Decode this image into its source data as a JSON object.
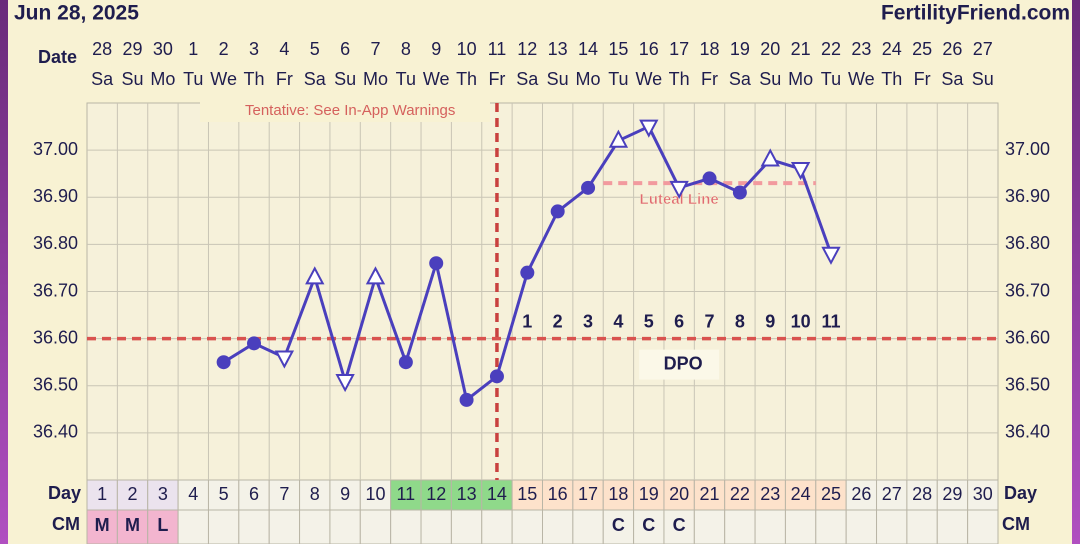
{
  "header": {
    "date": "Jun 28, 2025",
    "site": "FertilityFriend.com"
  },
  "chart_data": {
    "type": "line",
    "date_label": "Date",
    "date_numbers": [
      28,
      29,
      30,
      1,
      2,
      3,
      4,
      5,
      6,
      7,
      8,
      9,
      10,
      11,
      12,
      13,
      14,
      15,
      16,
      17,
      18,
      19,
      20,
      21,
      22,
      23,
      24,
      25,
      26,
      27
    ],
    "weekdays": [
      "Sa",
      "Su",
      "Mo",
      "Tu",
      "We",
      "Th",
      "Fr",
      "Sa",
      "Su",
      "Mo",
      "Tu",
      "We",
      "Th",
      "Fr",
      "Sa",
      "Su",
      "Mo",
      "Tu",
      "We",
      "Th",
      "Fr",
      "Sa",
      "Su",
      "Mo",
      "Tu",
      "We",
      "Th",
      "Fr",
      "Sa",
      "Su"
    ],
    "day_label": "Day",
    "categories": [
      1,
      2,
      3,
      4,
      5,
      6,
      7,
      8,
      9,
      10,
      11,
      12,
      13,
      14,
      15,
      16,
      17,
      18,
      19,
      20,
      21,
      22,
      23,
      24,
      25,
      26,
      27,
      28,
      29,
      30
    ],
    "day_colors": [
      "#ebe3ee",
      "#ebe3ee",
      "#ebe3ee",
      "#f4f2e8",
      "#f4f2e8",
      "#f4f2e8",
      "#f4f2e8",
      "#f4f2e8",
      "#f4f2e8",
      "#f4f2e8",
      "#8fd98a",
      "#8fd98a",
      "#8fd98a",
      "#8fd98a",
      "#fde2cb",
      "#fde2cb",
      "#fde2cb",
      "#fde2cb",
      "#fde2cb",
      "#fde2cb",
      "#fde2cb",
      "#fde2cb",
      "#fde2cb",
      "#fde2cb",
      "#fde2cb",
      "#f4f2e8",
      "#f4f2e8",
      "#f4f2e8",
      "#f4f2e8",
      "#f4f2e8"
    ],
    "cm_label": "CM",
    "cm": [
      "M",
      "M",
      "L",
      null,
      null,
      null,
      null,
      null,
      null,
      null,
      null,
      null,
      null,
      null,
      null,
      null,
      null,
      "C",
      "C",
      "C",
      null,
      null,
      null,
      null,
      null,
      null,
      null,
      null,
      null,
      null
    ],
    "cm_colors": [
      "#f3b5cf",
      "#f3b5cf",
      "#f3b5cf",
      "#f4f2e8",
      "#f4f2e8",
      "#f4f2e8",
      "#f4f2e8",
      "#f4f2e8",
      "#f4f2e8",
      "#f4f2e8",
      "#f4f2e8",
      "#f4f2e8",
      "#f4f2e8",
      "#f4f2e8",
      "#f4f2e8",
      "#f4f2e8",
      "#f4f2e8",
      "#f4f2e8",
      "#f4f2e8",
      "#f4f2e8",
      "#f4f2e8",
      "#f4f2e8",
      "#f4f2e8",
      "#f4f2e8",
      "#f4f2e8",
      "#f4f2e8",
      "#f4f2e8",
      "#f4f2e8",
      "#f4f2e8",
      "#f4f2e8"
    ],
    "values": [
      null,
      null,
      null,
      null,
      36.55,
      36.59,
      36.56,
      36.73,
      36.51,
      36.73,
      36.55,
      36.76,
      36.47,
      36.52,
      36.74,
      36.87,
      36.92,
      37.02,
      37.05,
      36.92,
      36.94,
      36.91,
      36.98,
      36.96,
      36.78,
      null,
      null,
      null,
      null,
      null
    ],
    "markers": [
      null,
      null,
      null,
      null,
      "dot",
      "dot",
      "down",
      "up",
      "down",
      "up",
      "dot",
      "dot",
      "dot",
      "dot",
      "dot",
      "dot",
      "dot",
      "up",
      "down",
      "down",
      "dot",
      "dot",
      "up",
      "down",
      "down",
      null,
      null,
      null,
      null,
      null
    ],
    "color": "#4a3fbd",
    "ylim": [
      36.3,
      37.1
    ],
    "yticks": [
      {
        "value": 36.4,
        "label": "36.40"
      },
      {
        "value": 36.5,
        "label": "36.50"
      },
      {
        "value": 36.6,
        "label": "36.60"
      },
      {
        "value": 36.7,
        "label": "36.70"
      },
      {
        "value": 36.8,
        "label": "36.80"
      },
      {
        "value": 36.9,
        "label": "36.90"
      },
      {
        "value": 37.0,
        "label": "37.00"
      }
    ],
    "grid": true,
    "coverline": 36.6,
    "ovulation_day": 14,
    "annotation": "Tentative: See In-App Warnings",
    "luteal_line": {
      "label": "Luteal Line",
      "value": 36.93,
      "days": [
        18,
        24
      ]
    },
    "dpo": {
      "label": "DPO",
      "numbers": [
        1,
        2,
        3,
        4,
        5,
        6,
        7,
        8,
        9,
        10,
        11
      ]
    }
  }
}
